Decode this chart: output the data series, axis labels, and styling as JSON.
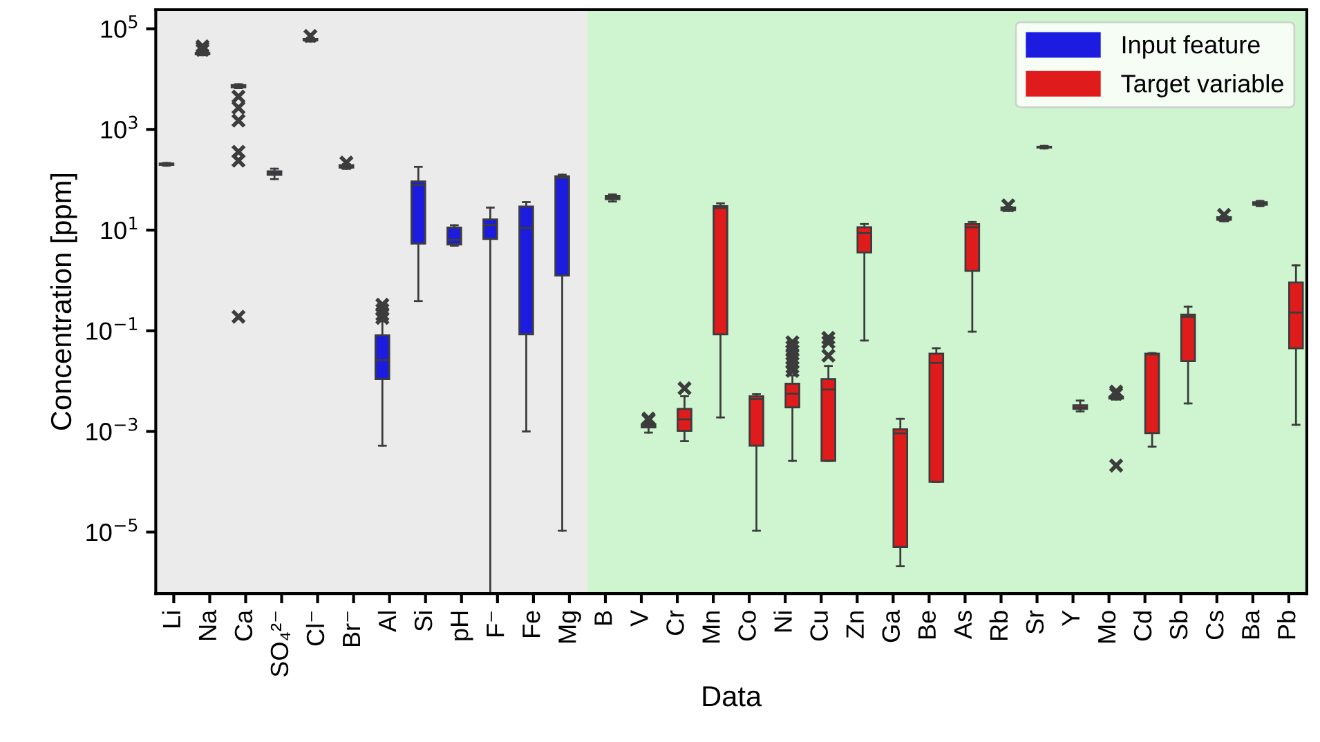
{
  "chart_data": {
    "type": "box",
    "xlabel": "Data",
    "ylabel": "Concentration [ppm]",
    "categories": [
      "Li",
      "Na",
      "Ca",
      "SO₄²⁻",
      "Cl⁻",
      "Br⁻",
      "Al",
      "Si",
      "pH",
      "F⁻",
      "Fe",
      "Mg",
      "B",
      "V",
      "Cr",
      "Mn",
      "Co",
      "Ni",
      "Cu",
      "Zn",
      "Ga",
      "Be",
      "As",
      "Rb",
      "Sr",
      "Y",
      "Mo",
      "Cd",
      "Sb",
      "Cs",
      "Ba",
      "Pb"
    ],
    "log": "y",
    "ylim": [
      6e-07,
      240000
    ],
    "yticks": [
      {
        "value": 1e-05,
        "label": "10$^{−5}$"
      },
      {
        "value": 0.001,
        "label": "10$^{−3}$"
      },
      {
        "value": 0.1,
        "label": "10$^{−1}$"
      },
      {
        "value": 10,
        "label": "10$^{1}$"
      },
      {
        "value": 1000,
        "label": "10$^{3}$"
      },
      {
        "value": 100000,
        "label": "10$^{5}$"
      }
    ],
    "legend": "top right",
    "marker": "cross",
    "bands": [
      {
        "axis": "x",
        "from": "Li",
        "to": "Mg",
        "color": "#ebebeb"
      },
      {
        "axis": "x",
        "from": "B",
        "to": "Pb",
        "color": "#cef5d0"
      }
    ],
    "series": [
      {
        "name": "Input feature",
        "color": "#1c1ce0",
        "boxes": [
          {
            "low": 190,
            "q1": 198,
            "median": 204,
            "q3": 210,
            "high": 215
          },
          {
            "low": 30000,
            "q1": 31000,
            "median": 32000,
            "q3": 33000,
            "high": 34000,
            "outliers": [
              38000,
              42000,
              45000
            ]
          },
          {
            "low": 6600,
            "q1": 6900,
            "median": 7300,
            "q3": 7600,
            "high": 7900,
            "outliers": [
              4500,
              2700,
              1500,
              360,
              240,
              0.19
            ]
          },
          {
            "low": 103,
            "q1": 125,
            "median": 135,
            "q3": 148,
            "high": 166
          },
          {
            "low": 56000,
            "q1": 59000,
            "median": 61000,
            "q3": 63000,
            "high": 66000,
            "outliers": [
              72000
            ]
          },
          {
            "low": 165,
            "q1": 175,
            "median": 185,
            "q3": 195,
            "high": 205,
            "outliers": [
              220
            ]
          },
          {
            "low": 0.00052,
            "q1": 0.011,
            "median": 0.026,
            "q3": 0.081,
            "high": 0.155,
            "outliers": [
              0.18,
              0.21,
              0.26,
              0.33
            ]
          },
          {
            "low": 0.39,
            "q1": 5.4,
            "median": 79,
            "q3": 93,
            "high": 182
          },
          {
            "low": 4.9,
            "q1": 5.2,
            "median": 6.4,
            "q3": 11.2,
            "high": 12.5
          },
          {
            "low": 6e-07,
            "q1": 6.7,
            "median": 12.6,
            "q3": 16.3,
            "high": 28
          },
          {
            "low": 0.001,
            "q1": 0.085,
            "median": 11,
            "q3": 29.5,
            "high": 36
          },
          {
            "low": 1.07e-05,
            "q1": 1.25,
            "median": 110,
            "q3": 117,
            "high": 126
          },
          null,
          null,
          null,
          null,
          null,
          null,
          null,
          null,
          null,
          null,
          null,
          null,
          null,
          null,
          null,
          null,
          null,
          null,
          null,
          null
        ]
      },
      {
        "name": "Target variable",
        "color": "#e01b1b",
        "boxes": [
          null,
          null,
          null,
          null,
          null,
          null,
          null,
          null,
          null,
          null,
          null,
          null,
          {
            "low": 37,
            "q1": 41,
            "median": 45,
            "q3": 48,
            "high": 51
          },
          {
            "low": 0.00095,
            "q1": 0.0012,
            "median": 0.0013,
            "q3": 0.0014,
            "high": 0.00155,
            "outliers": [
              0.0017,
              0.0018
            ]
          },
          {
            "low": 0.00064,
            "q1": 0.00103,
            "median": 0.00174,
            "q3": 0.0028,
            "high": 0.005,
            "outliers": [
              0.0072
            ]
          },
          {
            "low": 0.0019,
            "q1": 0.085,
            "median": 27.5,
            "q3": 30,
            "high": 34
          },
          {
            "low": 1.07e-05,
            "q1": 0.00052,
            "median": 0.0044,
            "q3": 0.005,
            "high": 0.0055
          },
          {
            "low": 0.00026,
            "q1": 0.003,
            "median": 0.0056,
            "q3": 0.0089,
            "high": 0.013,
            "outliers": [
              0.016,
              0.019,
              0.023,
              0.028,
              0.034,
              0.04,
              0.048,
              0.059
            ]
          },
          {
            "low": 0.00026,
            "q1": 0.00026,
            "median": 0.0068,
            "q3": 0.011,
            "high": 0.02,
            "outliers": [
              0.032,
              0.059,
              0.072
            ]
          },
          {
            "low": 0.064,
            "q1": 3.6,
            "median": 8.7,
            "q3": 11.4,
            "high": 13.2
          },
          {
            "low": 2.1e-06,
            "q1": 5.1e-06,
            "median": 0.00092,
            "q3": 0.0011,
            "high": 0.00178
          },
          {
            "low": 0.0001,
            "q1": 0.0001,
            "median": 0.023,
            "q3": 0.035,
            "high": 0.045
          },
          {
            "low": 0.096,
            "q1": 1.55,
            "median": 11.4,
            "q3": 13.2,
            "high": 14.5
          },
          {
            "low": 24,
            "q1": 25,
            "median": 26.5,
            "q3": 28,
            "high": 29,
            "outliers": [
              31
            ]
          },
          {
            "low": 420,
            "q1": 435,
            "median": 445,
            "q3": 455,
            "high": 470
          },
          {
            "low": 0.0025,
            "q1": 0.0028,
            "median": 0.003,
            "q3": 0.0033,
            "high": 0.0041
          },
          {
            "low": 0.0043,
            "q1": 0.0045,
            "median": 0.0047,
            "q3": 0.0049,
            "high": 0.0052,
            "outliers": [
              0.0056,
              0.0062,
              0.00021
            ]
          },
          {
            "low": 0.0005,
            "q1": 0.00093,
            "median": 0.034,
            "q3": 0.035,
            "high": 0.036
          },
          {
            "low": 0.0036,
            "q1": 0.025,
            "median": 0.19,
            "q3": 0.21,
            "high": 0.3
          },
          {
            "low": 15,
            "q1": 16,
            "median": 17,
            "q3": 18,
            "high": 19,
            "outliers": [
              20
            ]
          },
          {
            "low": 30,
            "q1": 32,
            "median": 34,
            "q3": 36,
            "high": 38
          },
          {
            "low": 0.00135,
            "q1": 0.045,
            "median": 0.23,
            "q3": 0.91,
            "high": 2.0
          }
        ]
      }
    ]
  }
}
